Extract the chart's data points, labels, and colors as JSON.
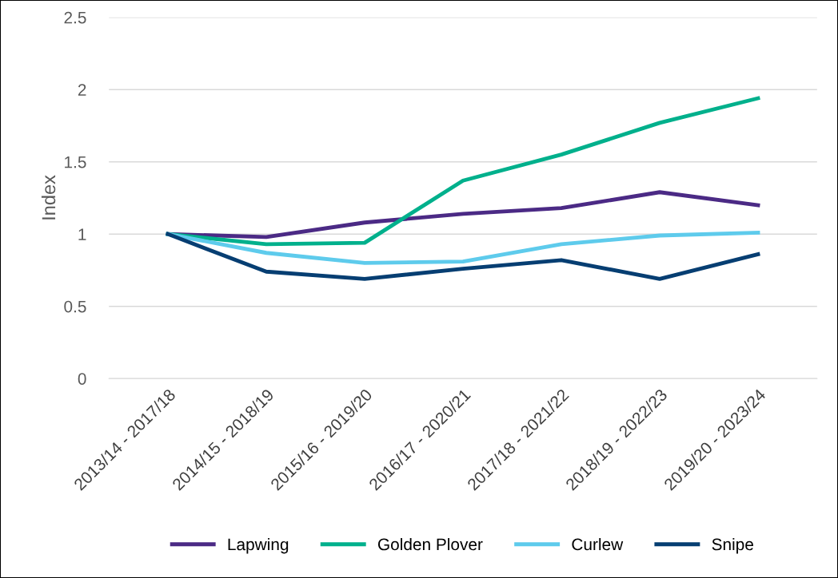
{
  "chart_data": {
    "type": "line",
    "ylabel": "Index",
    "categories": [
      "2013/14 - 2017/18",
      "2014/15 - 2018/19",
      "2015/16 - 2019/20",
      "2016/17 - 2020/21",
      "2017/18 - 2021/22",
      "2018/19 - 2022/23",
      "2019/20 - 2023/24"
    ],
    "series": [
      {
        "name": "Lapwing",
        "color": "#4b2a85",
        "values": [
          1.0,
          0.98,
          1.08,
          1.14,
          1.18,
          1.29,
          1.2
        ]
      },
      {
        "name": "Golden Plover",
        "color": "#00b08c",
        "values": [
          1.0,
          0.93,
          0.94,
          1.37,
          1.55,
          1.77,
          1.94
        ]
      },
      {
        "name": "Curlew",
        "color": "#5ecbec",
        "values": [
          1.0,
          0.87,
          0.8,
          0.81,
          0.93,
          0.99,
          1.01
        ]
      },
      {
        "name": "Snipe",
        "color": "#063e72",
        "values": [
          1.0,
          0.74,
          0.69,
          0.76,
          0.82,
          0.69,
          0.86
        ]
      }
    ],
    "ylim": [
      0,
      2.5
    ],
    "yticks": [
      0,
      0.5,
      1,
      1.5,
      2,
      2.5
    ],
    "grid": "y",
    "legend": "bottom",
    "marker": "none",
    "line_style": "solid"
  }
}
